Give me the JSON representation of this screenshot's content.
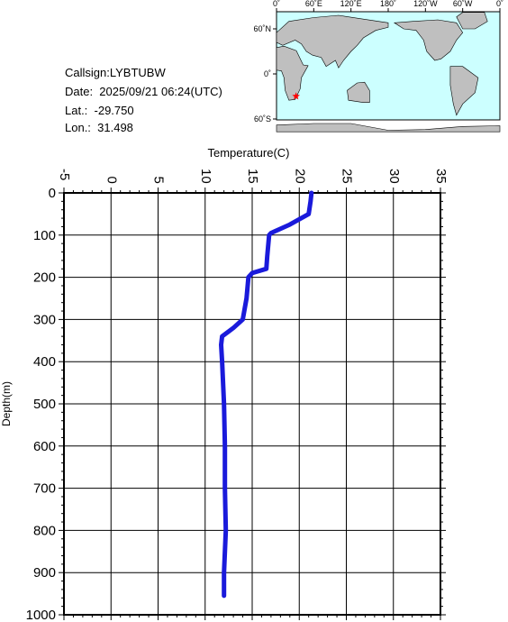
{
  "info": {
    "callsign": "Callsign:LYBTUBW",
    "date": "Date:  2025/09/21 06:24(UTC)",
    "lat": "Lat.:  -29.750",
    "lon": "Lon.:  31.498"
  },
  "map": {
    "lon_labels": [
      "0˚",
      "60˚E",
      "120˚E",
      "180˚",
      "120˚W",
      "60˚W",
      "0˚"
    ],
    "lat_labels": [
      "60˚N",
      "0˚",
      "60˚S"
    ],
    "ocean_color": "#ccffff",
    "land_color": "#bfbfbf",
    "marker": {
      "lon": 31.498,
      "lat": -29.75,
      "color": "#ff0000",
      "icon": "star-icon"
    }
  },
  "chart_data": {
    "type": "line",
    "xlabel": "Temperature(C)",
    "ylabel": "Depth(m)",
    "xlim": [
      -5,
      35
    ],
    "ylim": [
      0,
      1000
    ],
    "y_inverted": true,
    "x_ticks": [
      "-5",
      "0",
      "5",
      "10",
      "15",
      "20",
      "25",
      "30",
      "35"
    ],
    "y_ticks": [
      "0",
      "100",
      "200",
      "300",
      "400",
      "500",
      "600",
      "700",
      "800",
      "900",
      "1000"
    ],
    "grid": true,
    "line_color": "#1a1adb",
    "series": [
      {
        "x": [
          21.3,
          21.2,
          21.0,
          19.0,
          17.0,
          16.8,
          16.6,
          16.5,
          15.0,
          14.6,
          14.4,
          14.0,
          13.0,
          11.8,
          11.7,
          11.8,
          12.0,
          12.1,
          12.1,
          12.2,
          12.0,
          12.0
        ],
        "y": [
          0,
          20,
          50,
          75,
          95,
          100,
          150,
          180,
          190,
          200,
          250,
          300,
          320,
          340,
          360,
          400,
          500,
          600,
          700,
          800,
          900,
          955
        ]
      }
    ]
  }
}
